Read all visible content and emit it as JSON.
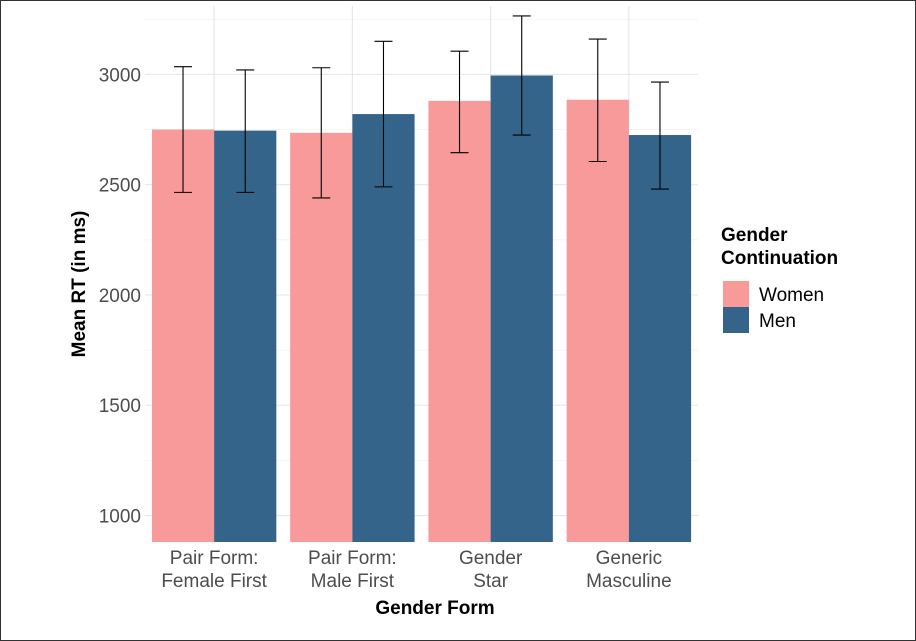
{
  "chart_data": {
    "type": "bar",
    "title": "",
    "xlabel": "Gender Form",
    "ylabel": "Mean RT (in ms)",
    "categories": [
      [
        "Pair Form:",
        "Female First"
      ],
      [
        "Pair Form:",
        "Male First"
      ],
      [
        "Gender",
        "Star"
      ],
      [
        "Generic",
        "Masculine"
      ]
    ],
    "series": [
      {
        "name": "Women",
        "color": "#F8999A",
        "values": [
          2750,
          2735,
          2880,
          2885
        ],
        "error_low": [
          2465,
          2440,
          2645,
          2605
        ],
        "error_high": [
          3035,
          3030,
          3105,
          3160
        ]
      },
      {
        "name": "Men",
        "color": "#35648A",
        "values": [
          2745,
          2820,
          2995,
          2725
        ],
        "error_low": [
          2465,
          2490,
          2725,
          2480
        ],
        "error_high": [
          3020,
          3150,
          3265,
          2965
        ]
      }
    ],
    "yticks": [
      1000,
      1500,
      2000,
      2500,
      3000
    ],
    "ylim": [
      880,
      3310
    ],
    "grid": true,
    "legend": {
      "title": [
        "Gender",
        "Continuation"
      ],
      "placement": "right"
    }
  }
}
